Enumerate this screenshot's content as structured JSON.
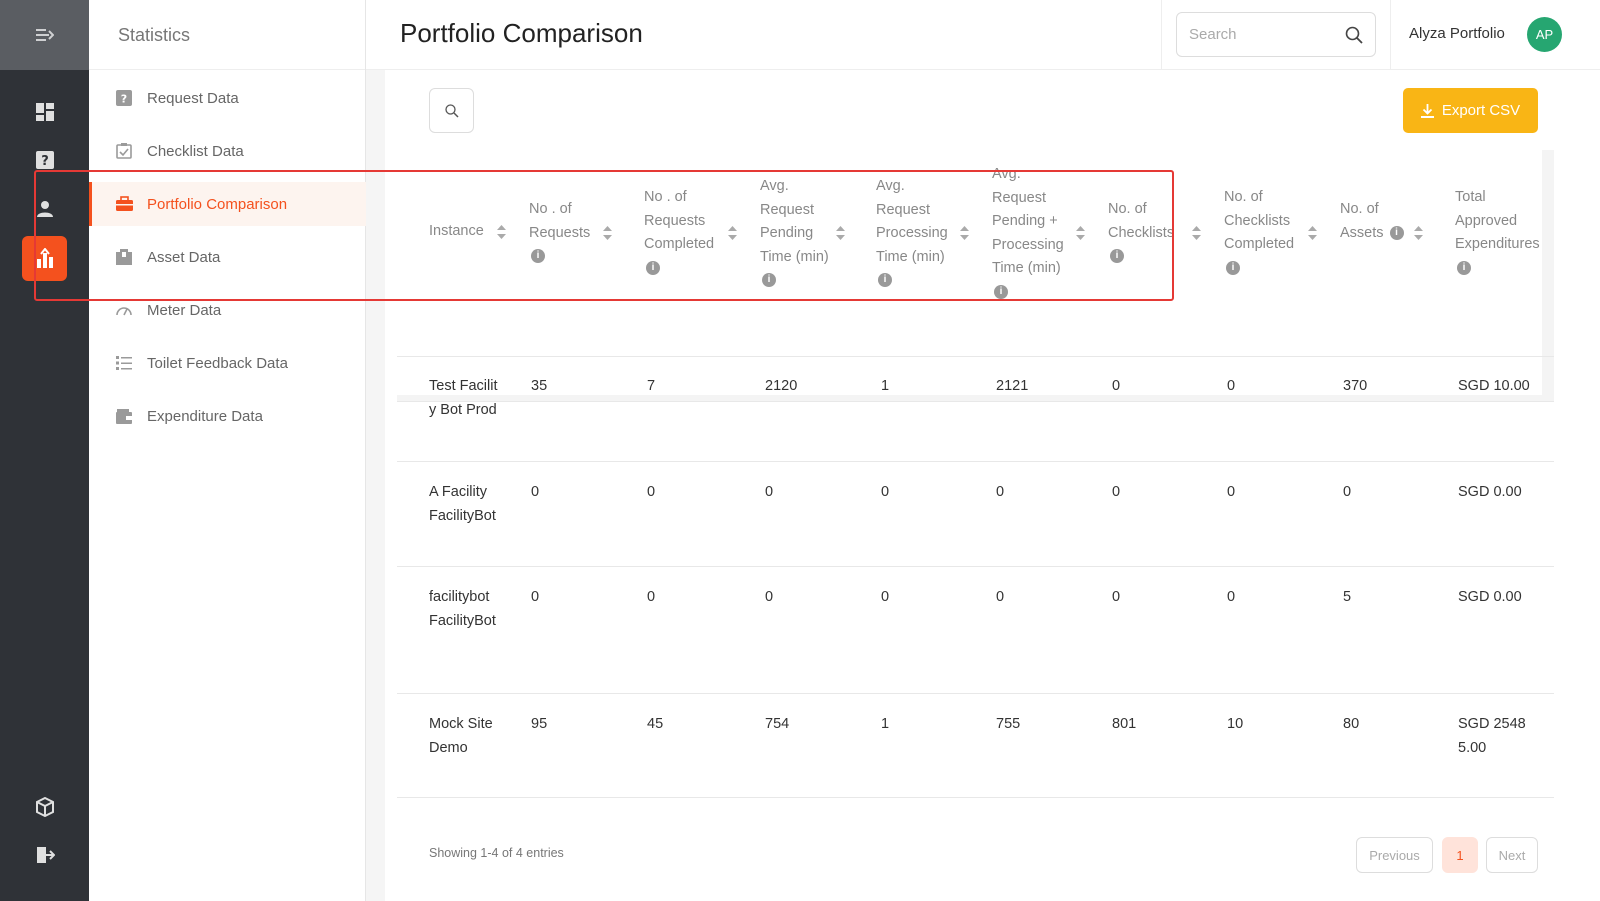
{
  "app": {
    "section_title": "Statistics",
    "page_title": "Portfolio Comparison"
  },
  "rail": {
    "icons": [
      "menu-collapse-icon",
      "dashboard-icon",
      "help-square-icon",
      "user-icon",
      "statistics-icon",
      "box-icon",
      "logout-icon"
    ]
  },
  "subnav": {
    "items": [
      {
        "label": "Request Data",
        "icon": "help-square-icon"
      },
      {
        "label": "Checklist Data",
        "icon": "clipboard-check-icon"
      },
      {
        "label": "Portfolio Comparison",
        "icon": "briefcase-icon"
      },
      {
        "label": "Asset Data",
        "icon": "asset-box-icon"
      },
      {
        "label": "Meter Data",
        "icon": "gauge-icon"
      },
      {
        "label": "Toilet Feedback Data",
        "icon": "list-icon"
      },
      {
        "label": "Expenditure Data",
        "icon": "wallet-icon"
      }
    ]
  },
  "header": {
    "search_placeholder": "Search",
    "user_name": "Alyza Portfolio",
    "avatar_initials": "AP"
  },
  "toolbar": {
    "export_label": "Export CSV"
  },
  "table": {
    "columns": [
      "Instance",
      "No . of Requests",
      "No . of Requests Completed",
      "Avg. Request Pending Time (min)",
      "Avg. Request Processing Time (min)",
      "Avg. Request Pending + Processing Time (min)",
      "No. of Checklists",
      "No. of Checklists Completed",
      "No. of Assets",
      "Total Approved Expenditures"
    ],
    "rows": [
      [
        "Test Facility Bot Prod",
        "35",
        "7",
        "2120",
        "1",
        "2121",
        "0",
        "0",
        "370",
        "SGD 10.00"
      ],
      [
        "A Facility FacilityBot",
        "0",
        "0",
        "0",
        "0",
        "0",
        "0",
        "0",
        "0",
        "SGD 0.00"
      ],
      [
        "facilitybot FacilityBot",
        "0",
        "0",
        "0",
        "0",
        "0",
        "0",
        "0",
        "5",
        "SGD 0.00"
      ],
      [
        "Mock Site Demo",
        "95",
        "45",
        "754",
        "1",
        "755",
        "801",
        "10",
        "80",
        "SGD 25485.00"
      ]
    ]
  },
  "footer": {
    "showing": "Showing 1-4 of 4 entries",
    "previous": "Previous",
    "page": "1",
    "next": "Next"
  },
  "colors": {
    "accent": "#f4511e",
    "export_button": "#f9b515",
    "avatar": "#26a671",
    "highlight_box": "#e53935",
    "rail_bg": "#2f3237"
  }
}
